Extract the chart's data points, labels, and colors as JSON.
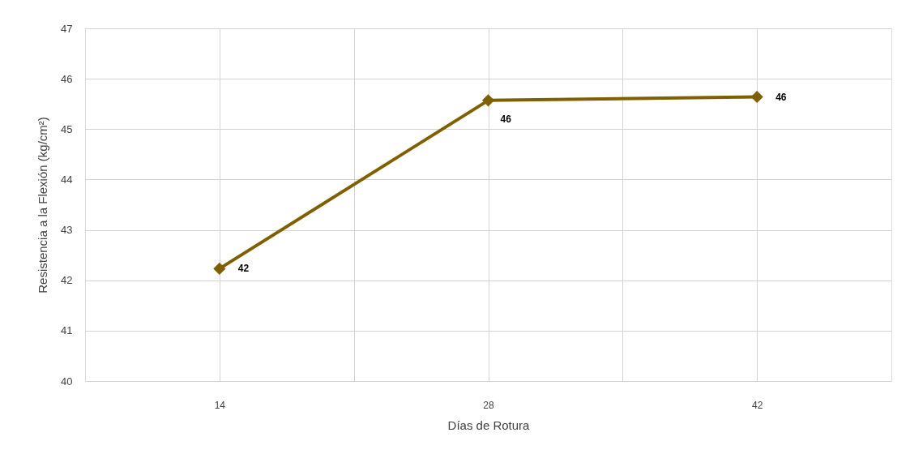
{
  "chart_data": {
    "type": "line",
    "xlabel": "Días de Rotura",
    "ylabel": "Resistencia a la Flexión (kg/cm²)",
    "categories": [
      "14",
      "28",
      "42"
    ],
    "series": [
      {
        "color": "#7f6000",
        "values": [
          42.23,
          45.57,
          45.64
        ],
        "value_labels": [
          "42",
          "46",
          "46"
        ]
      }
    ],
    "ylim": [
      40,
      47
    ],
    "yticks": [
      40,
      41,
      42,
      43,
      44,
      45,
      46,
      47
    ],
    "grid": true,
    "marker": "diamond",
    "line_style": "solid"
  }
}
